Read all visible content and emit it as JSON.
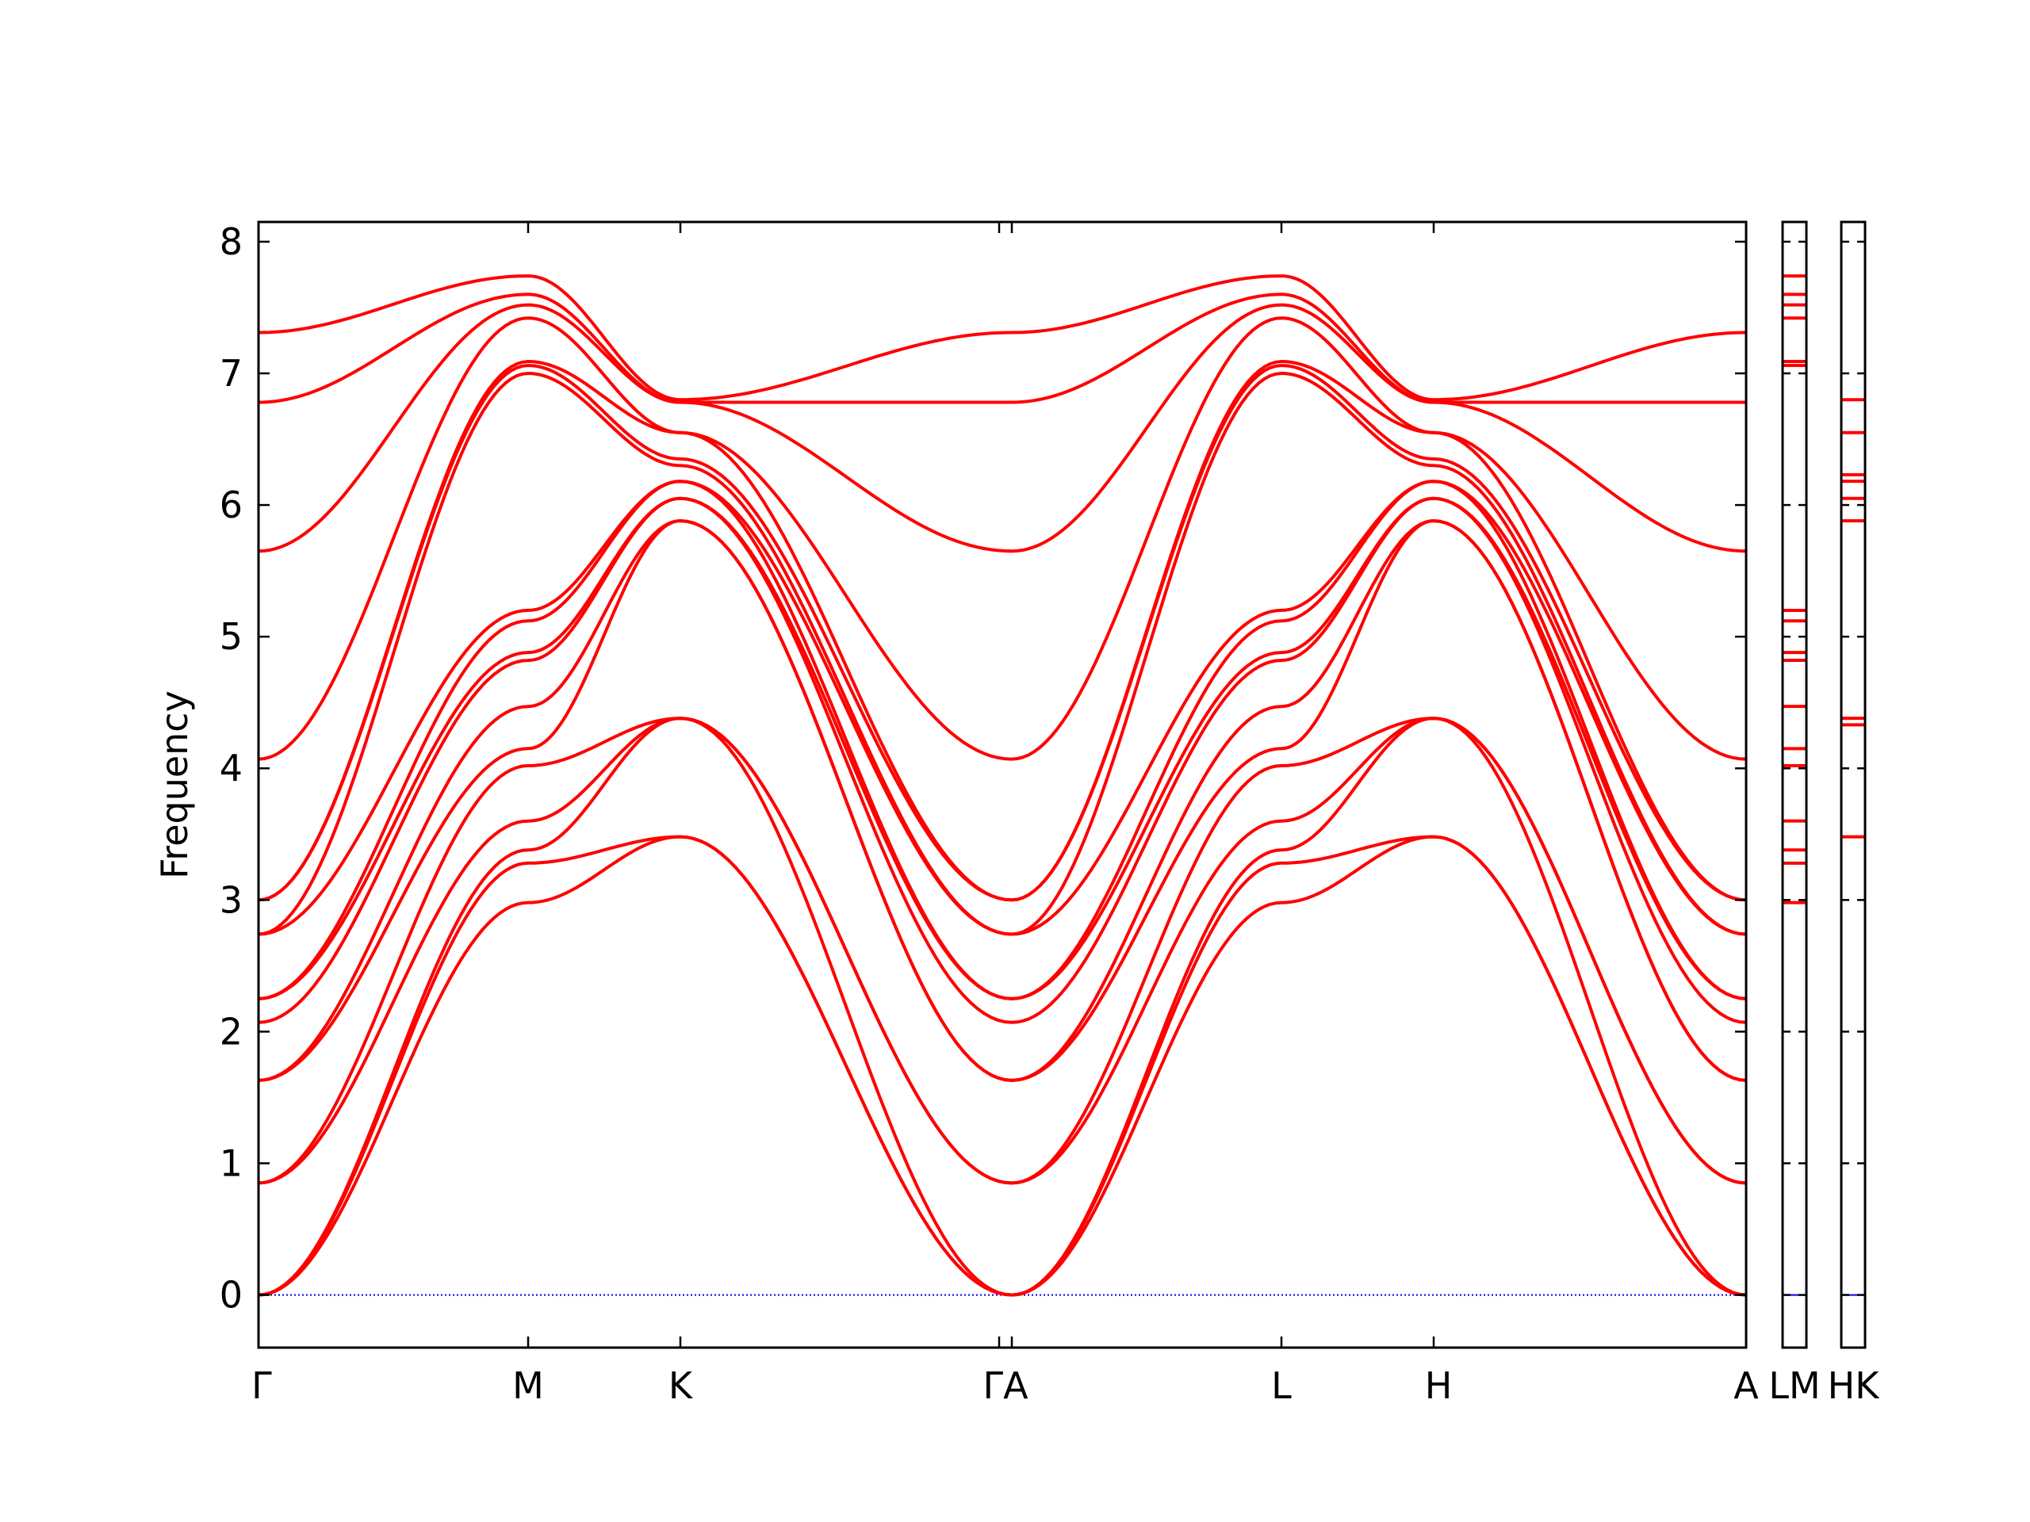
{
  "chart_data": {
    "type": "line",
    "title": "",
    "xlabel": "",
    "ylabel": "Frequency",
    "ylim": [
      -0.4,
      8.15
    ],
    "yticks": [
      "0",
      "1",
      "2",
      "3",
      "4",
      "5",
      "6",
      "7",
      "8"
    ],
    "grid": false,
    "legend": "none",
    "colors": {
      "bands": "#ff0000",
      "zero_line": "#0000ff",
      "frame": "#000000"
    },
    "main_path": {
      "segments": [
        {
          "from": "Γ",
          "to": "M"
        },
        {
          "from": "M",
          "to": "K"
        },
        {
          "from": "K",
          "to": "Γ"
        },
        {
          "from": "A",
          "to": "L"
        },
        {
          "from": "L",
          "to": "H"
        },
        {
          "from": "H",
          "to": "A"
        }
      ],
      "tick_labels": [
        "Γ",
        "M",
        "K",
        "ΓA",
        "L",
        "H",
        "A"
      ],
      "mode_frequencies": {
        "Γ": [
          0,
          0,
          0,
          0.85,
          0.85,
          1.63,
          1.63,
          2.07,
          2.25,
          2.25,
          2.74,
          2.74,
          3.0,
          3.0,
          4.07,
          5.65,
          6.78,
          7.31
        ],
        "M": [
          2.98,
          3.28,
          3.38,
          3.6,
          4.02,
          4.15,
          4.47,
          4.82,
          4.88,
          5.12,
          5.2,
          7.06,
          7.09,
          7.42,
          7.52,
          7.6,
          7.74,
          7.0
        ],
        "K": [
          3.48,
          3.48,
          4.38,
          4.38,
          4.38,
          5.88,
          5.88,
          6.05,
          6.05,
          6.18,
          6.18,
          6.3,
          6.55,
          6.55,
          6.78,
          6.78,
          6.8,
          6.35
        ]
      }
    },
    "side_panels": [
      {
        "path_label": "LM",
        "frequencies": [
          2.98,
          3.28,
          3.38,
          3.6,
          4.02,
          4.15,
          4.47,
          4.82,
          4.88,
          5.12,
          5.2,
          7.06,
          7.09,
          7.42,
          7.52,
          7.6,
          7.74
        ]
      },
      {
        "path_label": "HK",
        "frequencies": [
          3.48,
          4.33,
          4.38,
          5.88,
          6.05,
          6.18,
          6.23,
          6.55,
          6.8
        ]
      }
    ]
  }
}
